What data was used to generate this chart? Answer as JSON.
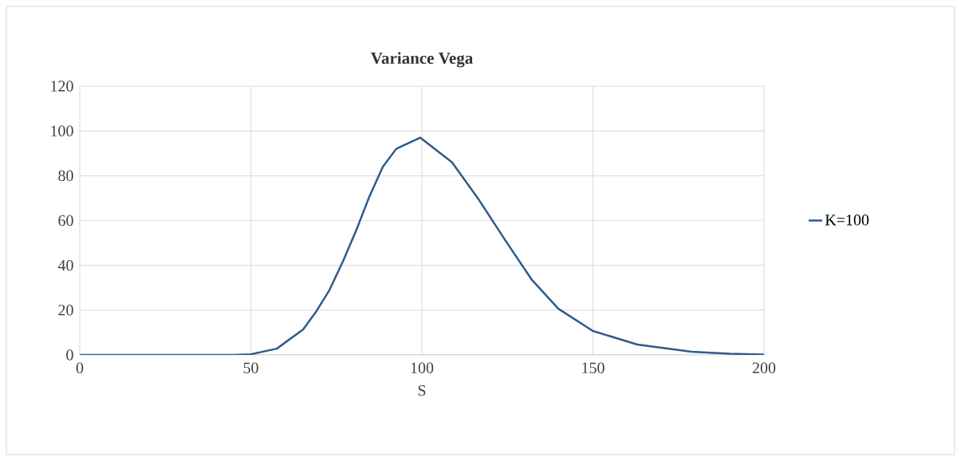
{
  "chart_data": {
    "type": "line",
    "title": "Variance Vega",
    "xlabel": "S",
    "x": [
      0,
      10,
      20,
      30,
      40,
      45,
      50,
      57.6,
      65.3,
      69.2,
      73,
      77,
      80.9,
      84.6,
      88.6,
      92.5,
      99.5,
      108.8,
      116.6,
      124.2,
      132,
      139.9,
      150,
      163,
      178.8,
      190,
      200
    ],
    "series": [
      {
        "name": "K=100",
        "color": "#2f5b88",
        "values": [
          0,
          0,
          0,
          0,
          0,
          0,
          0.3,
          2.8,
          11.4,
          19.6,
          29,
          42,
          56,
          70.5,
          84,
          92,
          97,
          86,
          69.4,
          51.6,
          33.8,
          20.6,
          10.7,
          4.6,
          1.4,
          0.5,
          0.2
        ]
      }
    ],
    "xlim": [
      0,
      200
    ],
    "ylim": [
      0,
      120
    ],
    "xticks": [
      0,
      50,
      100,
      150,
      200
    ],
    "yticks": [
      0,
      20,
      40,
      60,
      80,
      100,
      120
    ],
    "grid": true,
    "legend": "right",
    "marker": "none",
    "line_style": "solid"
  }
}
